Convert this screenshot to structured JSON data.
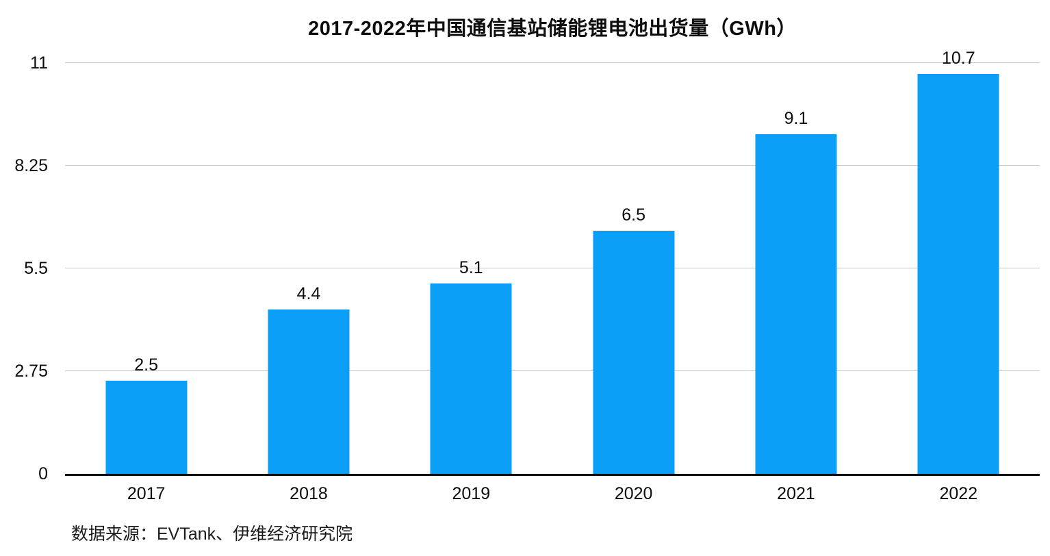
{
  "chart_data": {
    "type": "bar",
    "title": "2017-2022年中国通信基站储能锂电池出货量（GWh）",
    "categories": [
      "2017",
      "2018",
      "2019",
      "2020",
      "2021",
      "2022"
    ],
    "values": [
      2.5,
      4.4,
      5.1,
      6.5,
      9.1,
      10.7
    ],
    "value_labels": [
      "2.5",
      "4.4",
      "5.1",
      "6.5",
      "9.1",
      "10.7"
    ],
    "xlabel": "",
    "ylabel": "",
    "ylim": [
      0,
      11
    ],
    "y_ticks": [
      0,
      2.75,
      5.5,
      8.25,
      11
    ],
    "y_tick_labels": [
      "0",
      "2.75",
      "5.5",
      "8.25",
      "11"
    ],
    "grid": "horizontal",
    "legend": "none",
    "bar_color": "#0b9ff7",
    "gridline_color": "#c8c8c8",
    "axis_color": "#0d0d0d",
    "source": "数据来源：EVTank、伊维经济研究院"
  }
}
